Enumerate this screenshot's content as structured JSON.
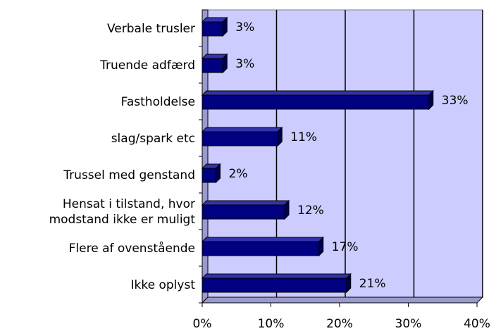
{
  "chart_data": {
    "type": "bar",
    "orientation": "horizontal",
    "categories": [
      "Verbale trusler",
      "Truende adfærd",
      "Fastholdelse",
      "slag/spark etc",
      "Trussel med genstand",
      "Hensat i tilstand, hvor\nmodstand ikke er muligt",
      "Flere af ovenstående",
      "Ikke oplyst"
    ],
    "values": [
      3,
      3,
      33,
      11,
      2,
      12,
      17,
      21
    ],
    "value_labels": [
      "3%",
      "3%",
      "33%",
      "11%",
      "2%",
      "12%",
      "17%",
      "21%"
    ],
    "color": "#000080",
    "xlim": [
      0,
      40
    ],
    "xticks": [
      {
        "value": 0,
        "label": "0%"
      },
      {
        "value": 10,
        "label": "10%"
      },
      {
        "value": 20,
        "label": "20%"
      },
      {
        "value": 30,
        "label": "30%"
      },
      {
        "value": 40,
        "label": "40%"
      }
    ],
    "grid": true
  }
}
